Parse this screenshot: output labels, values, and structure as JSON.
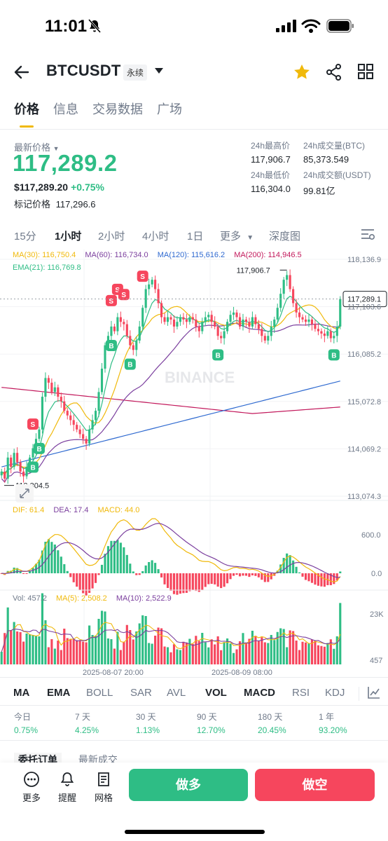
{
  "status_bar": {
    "time": "11:01"
  },
  "header": {
    "symbol": "BTCUSDT",
    "contract_type": "永续"
  },
  "tabs": [
    {
      "label": "价格",
      "active": true
    },
    {
      "label": "信息",
      "active": false
    },
    {
      "label": "交易数据",
      "active": false
    },
    {
      "label": "广场",
      "active": false
    }
  ],
  "price": {
    "last_label": "最新价格",
    "last_price": "117,289.2",
    "usd_value": "$117,289.20",
    "change_pct": "+0.75%",
    "mark_label": "标记价格",
    "mark_value": "117,296.6"
  },
  "stats": {
    "high_label": "24h最高价",
    "high_value": "117,906.7",
    "vol_btc_label": "24h成交量(BTC)",
    "vol_btc_value": "85,373.549",
    "low_label": "24h最低价",
    "low_value": "116,304.0",
    "vol_usdt_label": "24h成交额(USDT)",
    "vol_usdt_value": "99.81亿"
  },
  "timeframes": [
    "15分",
    "1小时",
    "2小时",
    "4小时",
    "1日",
    "更多",
    "深度图"
  ],
  "active_timeframe": "1小时",
  "chart_data": {
    "type": "candlestick",
    "ma_legend": {
      "ma30": "MA(30): 116,750.4",
      "ma60": "MA(60): 116,734.0",
      "ma120": "MA(120): 115,616.2",
      "ma200": "MA(200): 114,946.5",
      "ema21": "EMA(21): 116,769.8"
    },
    "y_ticks": [
      "118,136.9",
      "117,103.6",
      "116,085.2",
      "115,072.8",
      "114,069.2",
      "113,074.3"
    ],
    "ylim": [
      113074.3,
      118136.9
    ],
    "current_price_label": "117,289.1",
    "current_price": 117289.1,
    "high_annotation": "117,906.7",
    "low_annotation": "113,304.5",
    "watermark": "BINANCE",
    "x_labels": [
      "2025-08-07 20:00",
      "2025-08-09 08:00"
    ],
    "closes": [
      113600,
      113450,
      113900,
      113700,
      114000,
      113800,
      113600,
      113500,
      113700,
      113900,
      114100,
      114300,
      114500,
      115200,
      115600,
      115500,
      115300,
      115400,
      115200,
      115100,
      114900,
      114800,
      114700,
      114600,
      114500,
      114400,
      114300,
      114200,
      114500,
      114700,
      114900,
      115300,
      115800,
      116300,
      116500,
      116700,
      116600,
      116900,
      116800,
      116750,
      116500,
      116300,
      116200,
      116400,
      116700,
      117100,
      117500,
      117600,
      117700,
      117500,
      117200,
      116900,
      116800,
      116900,
      116850,
      116700,
      116800,
      116900,
      116850,
      116800,
      116900,
      116850,
      116700,
      116600,
      116800,
      116900,
      116950,
      116800,
      116700,
      116500,
      116450,
      116600,
      116800,
      116950,
      117000,
      116900,
      116700,
      116850,
      116800,
      116700,
      116900,
      116750,
      116650,
      116500,
      116400,
      116500,
      116700,
      116850,
      117100,
      117400,
      117700,
      117800,
      117500,
      117200,
      117000,
      116900,
      116850,
      116800,
      116850,
      116750,
      116650,
      116600,
      116550,
      116500,
      116600,
      116450,
      116500,
      116700,
      117289
    ],
    "macd_legend": {
      "dif": "DIF: 61.4",
      "dea": "DEA: 17.4",
      "macd": "MACD: 44.0"
    },
    "macd_ticks": [
      "600.0",
      "0.0"
    ],
    "vol_legend": {
      "vol": "Vol: 457.2",
      "ma5": "MA(5): 2,508.2",
      "ma10": "MA(10): 2,522.9"
    },
    "vol_ticks": [
      "23K",
      "457"
    ]
  },
  "indicators": [
    "MA",
    "EMA",
    "BOLL",
    "SAR",
    "AVL",
    "VOL",
    "MACD",
    "RSI",
    "KDJ"
  ],
  "active_indicators": [
    "MA",
    "EMA",
    "VOL",
    "MACD"
  ],
  "performance": [
    {
      "label": "今日",
      "value": "0.75%"
    },
    {
      "label": "7 天",
      "value": "4.25%"
    },
    {
      "label": "30 天",
      "value": "1.13%"
    },
    {
      "label": "90 天",
      "value": "12.70%"
    },
    {
      "label": "180 天",
      "value": "20.45%"
    },
    {
      "label": "1 年",
      "value": "93.20%"
    }
  ],
  "sub_tabs": [
    "委托订单",
    "最新成交"
  ],
  "bottom": {
    "more": "更多",
    "alert": "提醒",
    "grid": "网格",
    "long": "做多",
    "short": "做空"
  },
  "colors": {
    "up": "#2ebd85",
    "down": "#f6465d",
    "accent": "#f0b90b",
    "ma30": "#f0b90b",
    "ma60": "#7b3f9e",
    "ma120": "#2f6ad0",
    "ma200": "#c2185b",
    "ema21": "#2ebd85"
  }
}
